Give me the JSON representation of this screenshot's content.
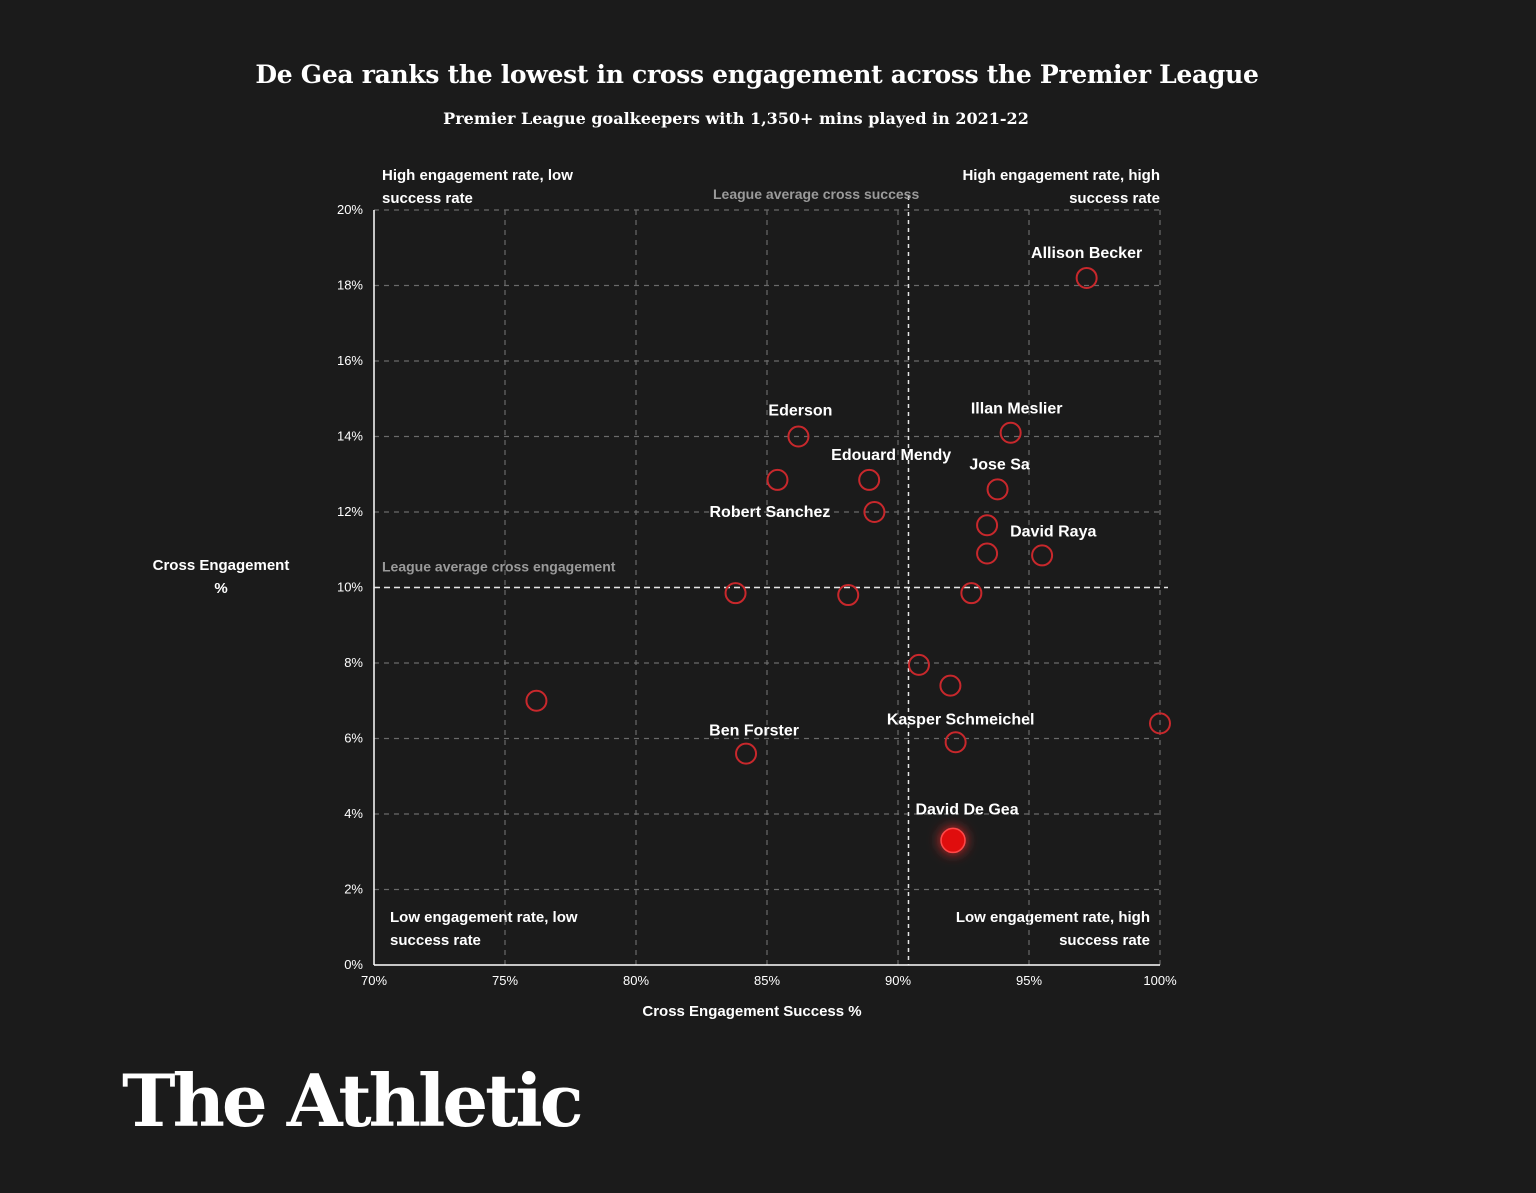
{
  "title": "De Gea ranks the lowest in cross engagement across the Premier League",
  "subtitle": "Premier League goalkeepers with 1,350+ mins played in 2021-22",
  "brand": "The Athletic",
  "quadrants": {
    "top_left": [
      "High engagement rate, low",
      "success rate"
    ],
    "top_right": [
      "High engagement rate, high",
      "success rate"
    ],
    "bottom_left": [
      "Low engagement rate, low",
      "success rate"
    ],
    "bottom_right": [
      "Low engagement rate, high",
      "success rate"
    ]
  },
  "chart_data": {
    "type": "scatter",
    "title": "De Gea ranks the lowest in cross engagement across the Premier League",
    "xlabel": "Cross Engagement Success %",
    "ylabel_lines": [
      "Cross Engagement",
      "%"
    ],
    "xlim": [
      70,
      100
    ],
    "ylim": [
      0,
      20
    ],
    "x_ticks": [
      70,
      75,
      80,
      85,
      90,
      95,
      100
    ],
    "y_ticks": [
      0,
      2,
      4,
      6,
      8,
      10,
      12,
      14,
      16,
      18,
      20
    ],
    "x_tick_labels": [
      "70%",
      "75%",
      "80%",
      "85%",
      "90%",
      "95%",
      "100%"
    ],
    "y_tick_labels": [
      "0%",
      "2%",
      "4%",
      "6%",
      "8%",
      "10%",
      "12%",
      "14%",
      "16%",
      "18%",
      "20%"
    ],
    "grid": true,
    "reference_lines": [
      {
        "axis": "x",
        "value": 90.4,
        "label": "League average cross success"
      },
      {
        "axis": "y",
        "value": 10.0,
        "label": "League average cross engagement"
      }
    ],
    "colors": {
      "background": "#1b1b1b",
      "marker": "#c8282c",
      "highlight": "#e01010",
      "grid": "#6a6a6a"
    },
    "points": [
      {
        "name": "Allison Becker",
        "x": 97.2,
        "y": 18.2
      },
      {
        "name": "Illan Meslier",
        "x": 94.3,
        "y": 14.1
      },
      {
        "name": "Ederson",
        "x": 86.2,
        "y": 14.0
      },
      {
        "name": "Edouard Mendy",
        "x": 88.9,
        "y": 12.85
      },
      {
        "name": "Jose Sa",
        "x": 93.8,
        "y": 12.6
      },
      {
        "name": "Robert Sanchez",
        "x": 89.1,
        "y": 12.0
      },
      {
        "name": "David Raya",
        "x": 95.5,
        "y": 10.85
      },
      {
        "name": "Kasper Schmeichel",
        "x": 92.2,
        "y": 5.9
      },
      {
        "name": "Ben Forster",
        "x": 84.2,
        "y": 5.6
      },
      {
        "name": "David De Gea",
        "x": 92.1,
        "y": 3.3,
        "highlight": true
      },
      {
        "name": "",
        "x": 85.4,
        "y": 12.85
      },
      {
        "name": "",
        "x": 93.4,
        "y": 11.65
      },
      {
        "name": "",
        "x": 93.4,
        "y": 10.9
      },
      {
        "name": "",
        "x": 83.8,
        "y": 9.85
      },
      {
        "name": "",
        "x": 88.1,
        "y": 9.8
      },
      {
        "name": "",
        "x": 92.8,
        "y": 9.85
      },
      {
        "name": "",
        "x": 90.8,
        "y": 7.95
      },
      {
        "name": "",
        "x": 92.0,
        "y": 7.4
      },
      {
        "name": "",
        "x": 76.2,
        "y": 7.0
      },
      {
        "name": "",
        "x": 100.0,
        "y": 6.4
      }
    ]
  }
}
